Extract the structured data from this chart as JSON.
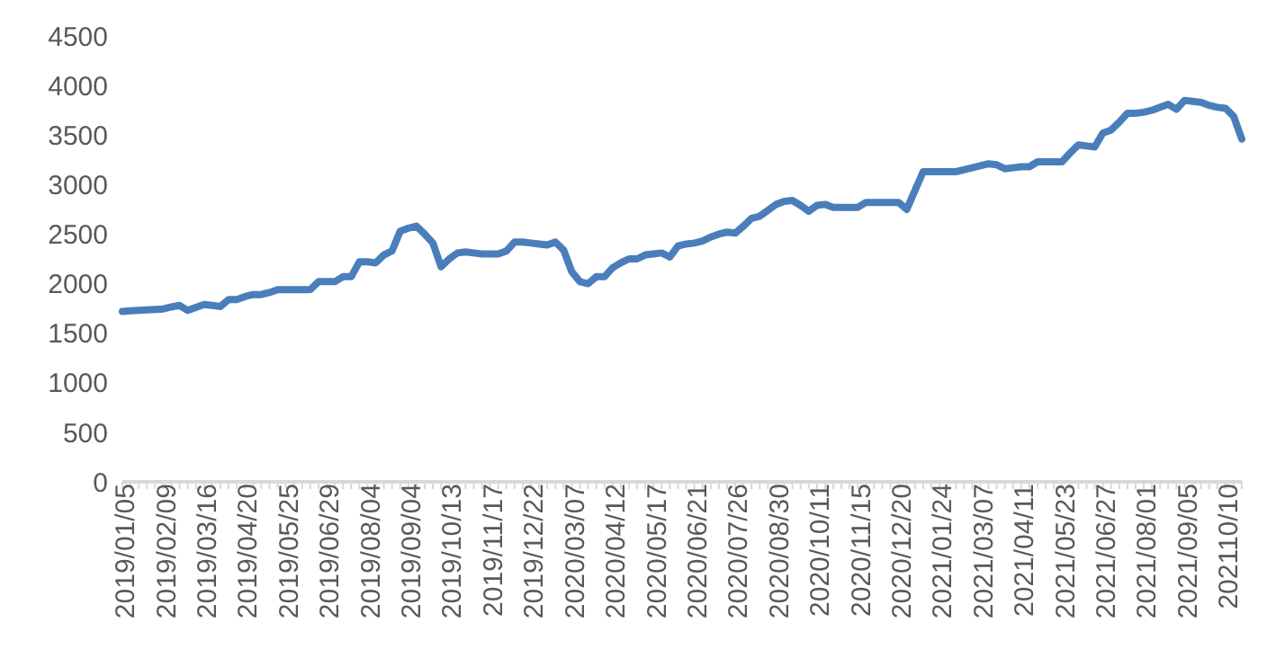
{
  "chart_data": {
    "type": "line",
    "categories": [
      "2019/01/05",
      null,
      null,
      null,
      null,
      "2019/02/09",
      null,
      null,
      null,
      null,
      "2019/03/16",
      null,
      null,
      null,
      null,
      "2019/04/20",
      null,
      null,
      null,
      null,
      "2019/05/25",
      null,
      null,
      null,
      null,
      "2019/06/29",
      null,
      null,
      null,
      null,
      "2019/08/04",
      null,
      null,
      null,
      null,
      "2019/09/04",
      null,
      null,
      null,
      null,
      "2019/10/13",
      null,
      null,
      null,
      null,
      "2019/11/17",
      null,
      null,
      null,
      null,
      "2019/12/22",
      null,
      null,
      null,
      null,
      "2020/03/07",
      null,
      null,
      null,
      null,
      "2020/04/12",
      null,
      null,
      null,
      null,
      "2020/05/17",
      null,
      null,
      null,
      null,
      "2020/06/21",
      null,
      null,
      null,
      null,
      "2020/07/26",
      null,
      null,
      null,
      null,
      "2020/08/30",
      null,
      null,
      null,
      null,
      "2020/10/11",
      null,
      null,
      null,
      null,
      "2020/11/15",
      null,
      null,
      null,
      null,
      "2020/12/20",
      null,
      null,
      null,
      null,
      "2021/01/24",
      null,
      null,
      null,
      null,
      "2021/03/07",
      null,
      null,
      null,
      null,
      "2021/04/11",
      null,
      null,
      null,
      null,
      "2021/05/23",
      null,
      null,
      null,
      null,
      "2021/06/27",
      null,
      null,
      null,
      null,
      "2021/08/01",
      null,
      null,
      null,
      null,
      "2021/09/05",
      null,
      null,
      null,
      null,
      "202110/10",
      null,
      null
    ],
    "series": [
      {
        "color": "#4a7ebb",
        "values": [
          1720,
          1725,
          1730,
          1735,
          1740,
          1745,
          1765,
          1780,
          1730,
          1760,
          1790,
          1780,
          1770,
          1840,
          1840,
          1870,
          1890,
          1890,
          1910,
          1940,
          1940,
          1940,
          1940,
          1940,
          2020,
          2020,
          2020,
          2070,
          2070,
          2220,
          2220,
          2210,
          2290,
          2330,
          2530,
          2560,
          2580,
          2500,
          2410,
          2170,
          2250,
          2310,
          2320,
          2310,
          2300,
          2300,
          2300,
          2330,
          2420,
          2420,
          2410,
          2400,
          2390,
          2420,
          2340,
          2120,
          2020,
          2000,
          2070,
          2070,
          2160,
          2210,
          2250,
          2250,
          2290,
          2300,
          2310,
          2270,
          2380,
          2400,
          2410,
          2430,
          2470,
          2500,
          2520,
          2510,
          2580,
          2660,
          2680,
          2740,
          2800,
          2830,
          2840,
          2790,
          2730,
          2790,
          2800,
          2770,
          2770,
          2770,
          2770,
          2820,
          2820,
          2820,
          2820,
          2820,
          2750,
          2940,
          3130,
          3130,
          3130,
          3130,
          3130,
          3150,
          3170,
          3190,
          3210,
          3200,
          3160,
          3170,
          3180,
          3180,
          3230,
          3230,
          3230,
          3230,
          3320,
          3400,
          3390,
          3380,
          3520,
          3550,
          3630,
          3720,
          3720,
          3730,
          3750,
          3780,
          3810,
          3760,
          3850,
          3840,
          3830,
          3800,
          3780,
          3770,
          3690,
          3460
        ]
      }
    ],
    "ylim": [
      0,
      4500
    ],
    "yticks": [
      0,
      500,
      1000,
      1500,
      2000,
      2500,
      3000,
      3500,
      4000,
      4500
    ],
    "marker": "none",
    "line_style": "solid"
  }
}
